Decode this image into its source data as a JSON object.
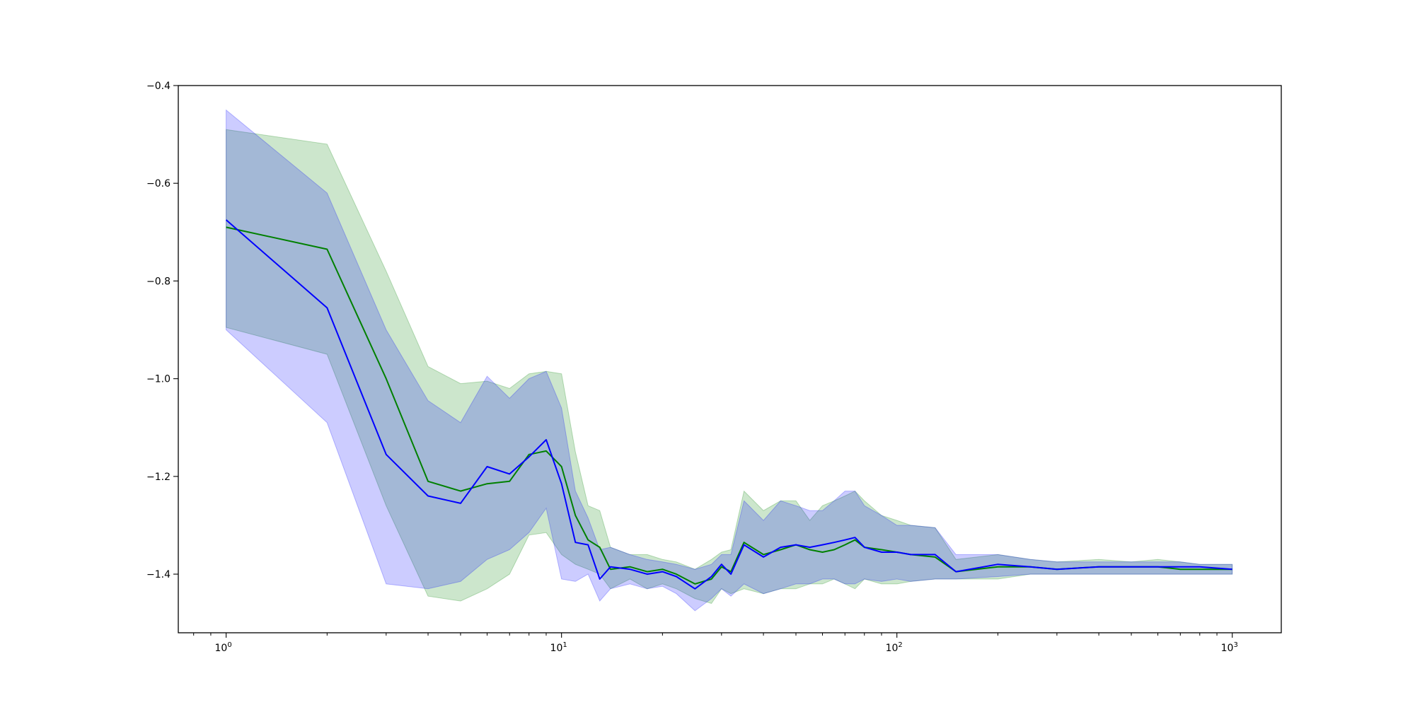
{
  "chart_data": {
    "type": "line",
    "title": "",
    "xlabel": "",
    "ylabel": "",
    "xscale": "log",
    "xlim": [
      0.72,
      1400
    ],
    "ylim": [
      -1.52,
      -0.4
    ],
    "grid": false,
    "legend": "none",
    "x_ticks": [
      {
        "value": 1,
        "base": "10",
        "exp": "0"
      },
      {
        "value": 10,
        "base": "10",
        "exp": "1"
      },
      {
        "value": 100,
        "base": "10",
        "exp": "2"
      },
      {
        "value": 1000,
        "base": "10",
        "exp": "3"
      }
    ],
    "y_ticks": [
      {
        "value": -0.4,
        "label": "−0.4"
      },
      {
        "value": -0.6,
        "label": "−0.6"
      },
      {
        "value": -0.8,
        "label": "−0.8"
      },
      {
        "value": -1.0,
        "label": "−1.0"
      },
      {
        "value": -1.2,
        "label": "−1.2"
      },
      {
        "value": -1.4,
        "label": "−1.4"
      }
    ],
    "series": [
      {
        "color": "#008000",
        "band_color": "#008000",
        "band_opacity": 0.2,
        "x": [
          1,
          2,
          3,
          4,
          5,
          6,
          7,
          8,
          9,
          10,
          11,
          12,
          13,
          14,
          16,
          18,
          20,
          22,
          25,
          28,
          30,
          32,
          35,
          40,
          45,
          50,
          55,
          60,
          65,
          70,
          75,
          80,
          90,
          100,
          110,
          130,
          150,
          200,
          250,
          300,
          400,
          500,
          600,
          700,
          800,
          1000
        ],
        "mean": [
          -0.69,
          -0.735,
          -1.0,
          -1.21,
          -1.23,
          -1.215,
          -1.21,
          -1.155,
          -1.148,
          -1.18,
          -1.28,
          -1.33,
          -1.345,
          -1.39,
          -1.385,
          -1.395,
          -1.39,
          -1.4,
          -1.42,
          -1.41,
          -1.385,
          -1.395,
          -1.335,
          -1.36,
          -1.35,
          -1.34,
          -1.35,
          -1.355,
          -1.35,
          -1.34,
          -1.33,
          -1.345,
          -1.35,
          -1.355,
          -1.36,
          -1.365,
          -1.395,
          -1.385,
          -1.385,
          -1.39,
          -1.385,
          -1.385,
          -1.385,
          -1.39,
          -1.39,
          -1.39
        ],
        "upper": [
          -0.49,
          -0.52,
          -0.78,
          -0.975,
          -1.01,
          -1.005,
          -1.02,
          -0.99,
          -0.985,
          -0.99,
          -1.15,
          -1.26,
          -1.27,
          -1.345,
          -1.36,
          -1.36,
          -1.37,
          -1.375,
          -1.39,
          -1.37,
          -1.355,
          -1.35,
          -1.23,
          -1.27,
          -1.25,
          -1.25,
          -1.29,
          -1.26,
          -1.25,
          -1.24,
          -1.23,
          -1.25,
          -1.28,
          -1.29,
          -1.3,
          -1.305,
          -1.37,
          -1.36,
          -1.37,
          -1.375,
          -1.37,
          -1.375,
          -1.37,
          -1.375,
          -1.38,
          -1.38
        ],
        "lower": [
          -0.895,
          -0.95,
          -1.26,
          -1.445,
          -1.455,
          -1.43,
          -1.4,
          -1.32,
          -1.315,
          -1.36,
          -1.38,
          -1.39,
          -1.4,
          -1.43,
          -1.41,
          -1.43,
          -1.42,
          -1.43,
          -1.45,
          -1.46,
          -1.43,
          -1.44,
          -1.43,
          -1.44,
          -1.43,
          -1.43,
          -1.42,
          -1.42,
          -1.41,
          -1.42,
          -1.43,
          -1.41,
          -1.42,
          -1.42,
          -1.415,
          -1.41,
          -1.41,
          -1.41,
          -1.4,
          -1.4,
          -1.4,
          -1.4,
          -1.4,
          -1.4,
          -1.4,
          -1.4
        ]
      },
      {
        "color": "#0000ff",
        "band_color": "#0000ff",
        "band_opacity": 0.2,
        "x": [
          1,
          2,
          3,
          4,
          5,
          6,
          7,
          8,
          9,
          10,
          11,
          12,
          13,
          14,
          16,
          18,
          20,
          22,
          25,
          28,
          30,
          32,
          35,
          40,
          45,
          50,
          55,
          60,
          65,
          70,
          75,
          80,
          90,
          100,
          110,
          130,
          150,
          200,
          250,
          300,
          400,
          500,
          600,
          700,
          800,
          1000
        ],
        "mean": [
          -0.675,
          -0.855,
          -1.155,
          -1.24,
          -1.255,
          -1.18,
          -1.195,
          -1.16,
          -1.125,
          -1.215,
          -1.335,
          -1.34,
          -1.41,
          -1.385,
          -1.39,
          -1.4,
          -1.395,
          -1.405,
          -1.43,
          -1.405,
          -1.38,
          -1.4,
          -1.34,
          -1.365,
          -1.345,
          -1.34,
          -1.345,
          -1.34,
          -1.335,
          -1.33,
          -1.325,
          -1.345,
          -1.355,
          -1.355,
          -1.36,
          -1.36,
          -1.395,
          -1.38,
          -1.385,
          -1.39,
          -1.385,
          -1.385,
          -1.385,
          -1.385,
          -1.385,
          -1.39
        ],
        "upper": [
          -0.45,
          -0.62,
          -0.9,
          -1.045,
          -1.09,
          -0.995,
          -1.04,
          -1.0,
          -0.985,
          -1.06,
          -1.23,
          -1.285,
          -1.35,
          -1.345,
          -1.36,
          -1.37,
          -1.375,
          -1.38,
          -1.39,
          -1.38,
          -1.36,
          -1.36,
          -1.25,
          -1.29,
          -1.25,
          -1.26,
          -1.27,
          -1.27,
          -1.25,
          -1.23,
          -1.23,
          -1.26,
          -1.28,
          -1.3,
          -1.3,
          -1.305,
          -1.36,
          -1.36,
          -1.37,
          -1.375,
          -1.375,
          -1.375,
          -1.375,
          -1.375,
          -1.38,
          -1.38
        ],
        "lower": [
          -0.9,
          -1.09,
          -1.42,
          -1.43,
          -1.415,
          -1.37,
          -1.35,
          -1.315,
          -1.265,
          -1.41,
          -1.415,
          -1.4,
          -1.455,
          -1.43,
          -1.42,
          -1.43,
          -1.425,
          -1.44,
          -1.475,
          -1.45,
          -1.43,
          -1.445,
          -1.42,
          -1.44,
          -1.43,
          -1.42,
          -1.42,
          -1.41,
          -1.41,
          -1.42,
          -1.42,
          -1.41,
          -1.415,
          -1.41,
          -1.415,
          -1.41,
          -1.41,
          -1.405,
          -1.4,
          -1.4,
          -1.4,
          -1.4,
          -1.4,
          -1.4,
          -1.4,
          -1.4
        ]
      }
    ]
  }
}
